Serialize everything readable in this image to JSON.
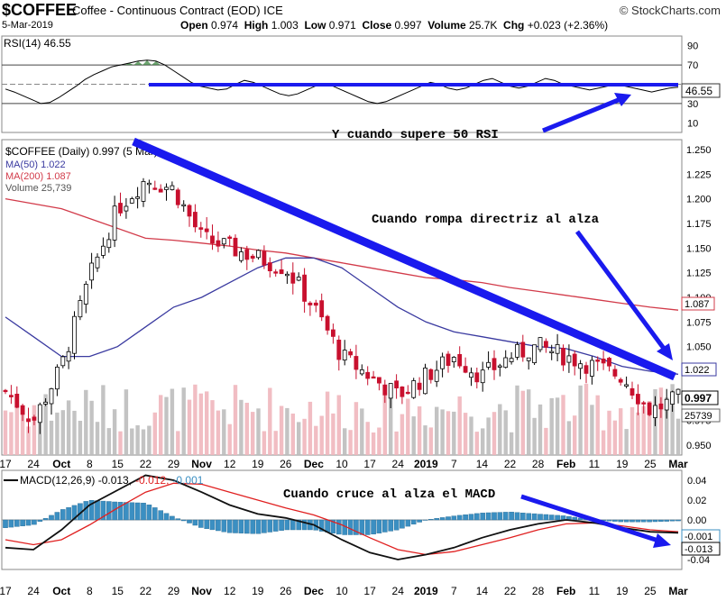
{
  "header": {
    "symbol": "$COFFEE",
    "name": "Coffee - Continuous Contract (EOD) ICE",
    "brand": "© StockCharts.com",
    "date": "5-Mar-2019",
    "open_label": "Open",
    "open": "0.974",
    "high_label": "High",
    "high": "1.003",
    "low_label": "Low",
    "low": "0.971",
    "close_label": "Close",
    "close": "0.997",
    "volume_label": "Volume",
    "volume": "25.7K",
    "chg_label": "Chg",
    "chg": "+0.023 (+2.36%)"
  },
  "rsi": {
    "label": "RSI(14) 46.55",
    "ticks": [
      "90",
      "70",
      "50",
      "30",
      "10"
    ],
    "tick_values": [
      90,
      70,
      50,
      30,
      10
    ],
    "last_value": "46.55",
    "annotation": "Y cuando supere 50 RSI"
  },
  "price": {
    "legend_title": "$COFFEE (Daily) 0.997 (5 Mar)",
    "ma50_label": "MA(50) 1.022",
    "ma200_label": "MA(200) 1.087",
    "volume_label": "Volume 25,739",
    "ticks": [
      "1.250",
      "1.225",
      "1.200",
      "1.175",
      "1.150",
      "1.125",
      "1.100",
      "1.075",
      "1.050",
      "1.025",
      "1.000",
      "0.975",
      "0.950"
    ],
    "tick_values": [
      1.25,
      1.225,
      1.2,
      1.175,
      1.15,
      1.125,
      1.1,
      1.075,
      1.05,
      1.025,
      1.0,
      0.975,
      0.95
    ],
    "ma200_last": "1.087",
    "ma50_last": "1.022",
    "close_last": "0.997",
    "volume_last": "25739",
    "annotation": "Cuando rompa directriz al alza"
  },
  "macd": {
    "label_main": "MACD(12,26,9) -0.013,",
    "label_signal": "-0.012,",
    "label_hist": "-0.001",
    "ticks": [
      "0.04",
      "0.02",
      "0.00",
      "-0.02",
      "-0.04"
    ],
    "tick_values": [
      0.04,
      0.02,
      0.0,
      -0.02,
      -0.04
    ],
    "hist_last": "-0.001",
    "macd_last": "-0.013",
    "annotation": "Cuando cruce al alza el MACD"
  },
  "x_axis": [
    "17",
    "24",
    "Oct",
    "8",
    "15",
    "22",
    "29",
    "Nov",
    "12",
    "19",
    "26",
    "Dec",
    "10",
    "17",
    "24",
    "2019",
    "7",
    "14",
    "22",
    "28",
    "Feb",
    "11",
    "19",
    "25",
    "Mar"
  ],
  "colors": {
    "ma50": "#3a3aa0",
    "ma200": "#d23b4a",
    "annot": "#1a1aee",
    "bull": "#000000",
    "bear": "#c8102e",
    "rsi_zone": "#2e7d32",
    "macd_hist": "#3b8fc2",
    "macd_signal": "#e02020"
  },
  "chart_data": [
    {
      "type": "line",
      "title": "RSI(14) 46.55",
      "ylim": [
        0,
        100
      ],
      "levels": [
        70,
        30
      ],
      "series": [
        {
          "name": "RSI(14)",
          "values": [
            45,
            42,
            38,
            34,
            30,
            31,
            36,
            42,
            48,
            55,
            60,
            64,
            68,
            70,
            72,
            74,
            75,
            74,
            70,
            64,
            58,
            52,
            48,
            46,
            44,
            45,
            50,
            54,
            52,
            48,
            44,
            40,
            38,
            40,
            44,
            48,
            50,
            48,
            44,
            40,
            36,
            32,
            30,
            32,
            36,
            40,
            44,
            48,
            52,
            50,
            46,
            44,
            46,
            50,
            54,
            56,
            52,
            48,
            46,
            48,
            52,
            56,
            54,
            50,
            48,
            46,
            44,
            46,
            48,
            50,
            48,
            46,
            44,
            42,
            44,
            46,
            47
          ]
        }
      ]
    },
    {
      "type": "line",
      "title": "$COFFEE (Daily) 0.997 (5 Mar)",
      "ylim": [
        0.94,
        1.26
      ],
      "x": [
        "Sep 17",
        "Sep 24",
        "Oct 1",
        "Oct 8",
        "Oct 15",
        "Oct 22",
        "Oct 29",
        "Nov 5",
        "Nov 12",
        "Nov 19",
        "Nov 26",
        "Dec 3",
        "Dec 10",
        "Dec 17",
        "Dec 24",
        "Jan 2",
        "Jan 7",
        "Jan 14",
        "Jan 22",
        "Jan 28",
        "Feb 4",
        "Feb 11",
        "Feb 19",
        "Feb 25",
        "Mar 4"
      ],
      "series": [
        {
          "name": "$COFFEE",
          "values": [
            1.005,
            0.975,
            1.03,
            1.12,
            1.19,
            1.22,
            1.21,
            1.16,
            1.15,
            1.14,
            1.13,
            1.09,
            1.04,
            1.02,
            1.0,
            1.02,
            1.04,
            1.02,
            1.04,
            1.05,
            1.04,
            1.03,
            1.02,
            0.985,
            0.997
          ]
        },
        {
          "name": "MA(50)",
          "values": [
            1.08,
            1.06,
            1.04,
            1.04,
            1.05,
            1.07,
            1.09,
            1.1,
            1.115,
            1.13,
            1.14,
            1.14,
            1.13,
            1.11,
            1.09,
            1.075,
            1.065,
            1.06,
            1.055,
            1.05,
            1.048,
            1.04,
            1.03,
            1.025,
            1.022
          ]
        },
        {
          "name": "MA(200)",
          "values": [
            1.2,
            1.195,
            1.19,
            1.18,
            1.17,
            1.16,
            1.158,
            1.155,
            1.152,
            1.148,
            1.145,
            1.14,
            1.135,
            1.13,
            1.125,
            1.12,
            1.118,
            1.115,
            1.11,
            1.106,
            1.102,
            1.098,
            1.094,
            1.09,
            1.087
          ]
        }
      ]
    },
    {
      "type": "line",
      "title": "MACD(12,26,9) -0.013, -0.012, -0.001",
      "ylim": [
        -0.05,
        0.05
      ],
      "x": [
        "Sep 17",
        "Sep 24",
        "Oct 1",
        "Oct 8",
        "Oct 15",
        "Oct 22",
        "Oct 29",
        "Nov 5",
        "Nov 12",
        "Nov 19",
        "Nov 26",
        "Dec 3",
        "Dec 10",
        "Dec 17",
        "Dec 24",
        "Jan 2",
        "Jan 7",
        "Jan 14",
        "Jan 22",
        "Jan 28",
        "Feb 4",
        "Feb 11",
        "Feb 19",
        "Feb 25",
        "Mar 4"
      ],
      "series": [
        {
          "name": "MACD",
          "values": [
            -0.028,
            -0.03,
            -0.01,
            0.015,
            0.03,
            0.045,
            0.04,
            0.028,
            0.015,
            0.006,
            0.002,
            -0.005,
            -0.02,
            -0.033,
            -0.04,
            -0.035,
            -0.028,
            -0.018,
            -0.01,
            -0.004,
            0.0,
            -0.003,
            -0.008,
            -0.012,
            -0.013
          ]
        },
        {
          "name": "Signal",
          "values": [
            -0.02,
            -0.025,
            -0.02,
            -0.005,
            0.012,
            0.028,
            0.037,
            0.036,
            0.028,
            0.02,
            0.012,
            0.005,
            -0.005,
            -0.018,
            -0.03,
            -0.035,
            -0.032,
            -0.025,
            -0.018,
            -0.01,
            -0.004,
            -0.003,
            -0.006,
            -0.01,
            -0.012
          ]
        },
        {
          "name": "Histogram",
          "values": [
            -0.008,
            -0.005,
            0.01,
            0.02,
            0.018,
            0.017,
            0.003,
            -0.008,
            -0.013,
            -0.014,
            -0.01,
            -0.01,
            -0.015,
            -0.015,
            -0.01,
            0.0,
            0.004,
            0.007,
            0.008,
            0.006,
            0.004,
            0.0,
            -0.002,
            -0.002,
            -0.001
          ]
        }
      ]
    }
  ]
}
